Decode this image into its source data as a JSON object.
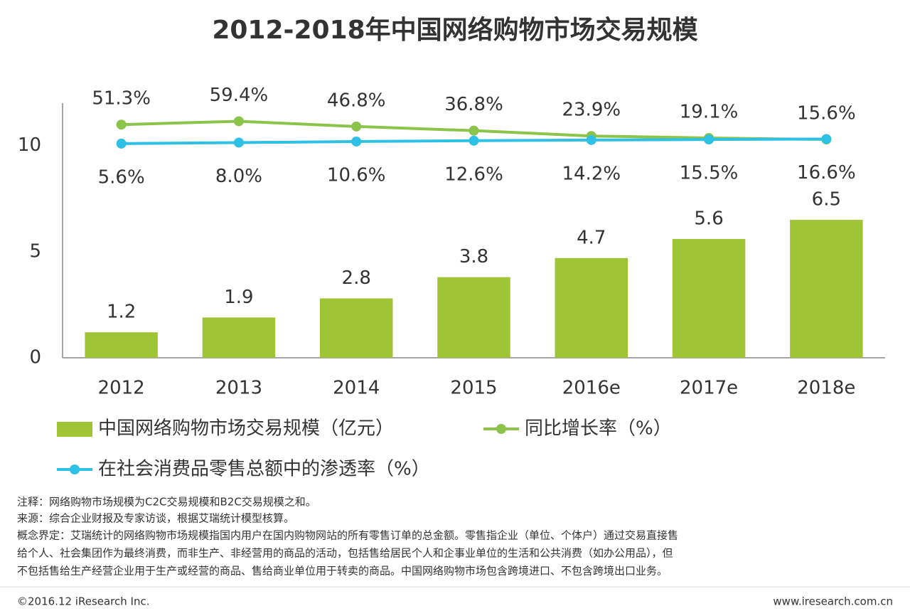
{
  "chart_data": {
    "type": "bar",
    "title": "2012-2018年中国网络购物市场交易规模",
    "categories": [
      "2012",
      "2013",
      "2014",
      "2015",
      "2016e",
      "2017e",
      "2018e"
    ],
    "series": [
      {
        "name": "中国网络购物市场交易规模（亿元）",
        "type": "bar",
        "color": "#9fc536",
        "values": [
          1.2,
          1.9,
          2.8,
          3.8,
          4.7,
          5.6,
          6.5
        ]
      },
      {
        "name": "同比增长率（%）",
        "type": "line",
        "axis": "y2",
        "color": "#8cc34a",
        "values": [
          51.3,
          59.4,
          46.8,
          36.8,
          23.9,
          19.1,
          15.6
        ],
        "value_labels": [
          "51.3%",
          "59.4%",
          "46.8%",
          "36.8%",
          "23.9%",
          "19.1%",
          "15.6%"
        ]
      },
      {
        "name": "在社会消费品零售总额中的渗透率（%）",
        "type": "line",
        "axis": "y2",
        "color": "#2fc0e6",
        "values": [
          5.6,
          8.0,
          10.6,
          12.6,
          14.2,
          15.5,
          16.6
        ],
        "value_labels": [
          "5.6%",
          "8.0%",
          "10.6%",
          "12.6%",
          "14.2%",
          "15.5%",
          "16.6%"
        ]
      }
    ],
    "ylim": [
      0,
      12
    ],
    "yticks": [
      0,
      5,
      10
    ],
    "y2lim": [
      -510,
      103
    ],
    "grid": false
  },
  "notes": [
    "注释：网络购物市场规模为C2C交易规模和B2C交易规模之和。",
    "来源：综合企业财报及专家访谈，根据艾瑞统计模型核算。",
    "概念界定：艾瑞统计的网络购物市场规模指国内用户在国内购物网站的所有零售订单的总金额。零售指企业（单位、个体户）通过交易直接售",
    "给个人、社会集团作为最终消费，而非生产、非经营用的商品的活动，包括售给居民个人和企事业单位的生活和公共消费（如办公用品），但",
    "不包括售给生产经营企业用于生产或经营的商品、售给商业单位用于转卖的商品。中国网络购物市场包含跨境进口、不包含跨境出口业务。"
  ],
  "footer": {
    "left": "©2016.12 iResearch Inc.",
    "right": "www.iresearch.com.cn"
  }
}
